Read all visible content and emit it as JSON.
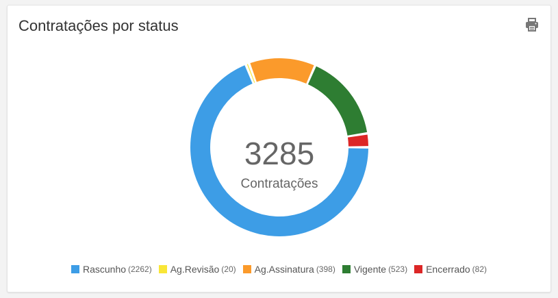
{
  "card": {
    "title": "Contratações por status"
  },
  "toolbar": {
    "print_icon": "printer-icon"
  },
  "chart_data": {
    "type": "pie",
    "variant": "donut",
    "total": "3285",
    "total_label": "Contratações",
    "categories": [
      "Rascunho",
      "Ag.Revisão",
      "Ag.Assinatura",
      "Vigente",
      "Encerrado"
    ],
    "values": [
      2262,
      20,
      398,
      523,
      82
    ],
    "colors": [
      "#3d9de6",
      "#f9e637",
      "#fb9a2b",
      "#2e7d32",
      "#dc2626"
    ],
    "legend_counts": [
      "(2262)",
      "(20)",
      "(398)",
      "(523)",
      "(82)"
    ],
    "legend_position": "bottom"
  }
}
